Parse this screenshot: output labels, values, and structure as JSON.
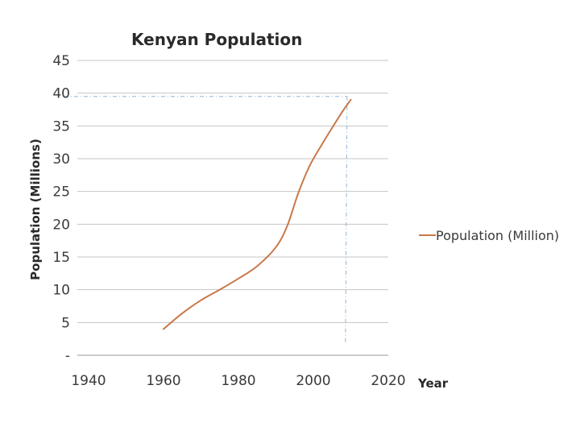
{
  "chart_data": {
    "type": "line",
    "title": "Kenyan Population",
    "xlabel": "Year",
    "ylabel": "Population (Millions)",
    "xlim": [
      1940,
      2020
    ],
    "ylim": [
      0,
      45
    ],
    "x_ticks": [
      "1940",
      "1960",
      "1980",
      "2000",
      "2020"
    ],
    "y_ticks": [
      "-",
      "5",
      "10",
      "15",
      "20",
      "25",
      "30",
      "35",
      "40",
      "45"
    ],
    "y_tick_values": [
      0,
      5,
      10,
      15,
      20,
      25,
      30,
      35,
      40,
      45
    ],
    "x_tick_values": [
      1940,
      1960,
      1980,
      2000,
      2020
    ],
    "grid": "horizontal",
    "legend_position": "right",
    "series": [
      {
        "name": "Population (Million)",
        "color": "#C8784A",
        "x": [
          1960,
          1965,
          1970,
          1975,
          1980,
          1985,
          1990,
          1993,
          1996,
          1999,
          2002,
          2005,
          2008,
          2010
        ],
        "y": [
          4.0,
          6.4,
          8.4,
          10.0,
          11.7,
          13.6,
          16.5,
          19.7,
          24.8,
          28.9,
          31.9,
          34.7,
          37.4,
          39.0
        ]
      }
    ],
    "reference_lines": {
      "color": "#8FB4D6",
      "horizontal_y": 39.5,
      "vertical_x": 2009
    }
  }
}
